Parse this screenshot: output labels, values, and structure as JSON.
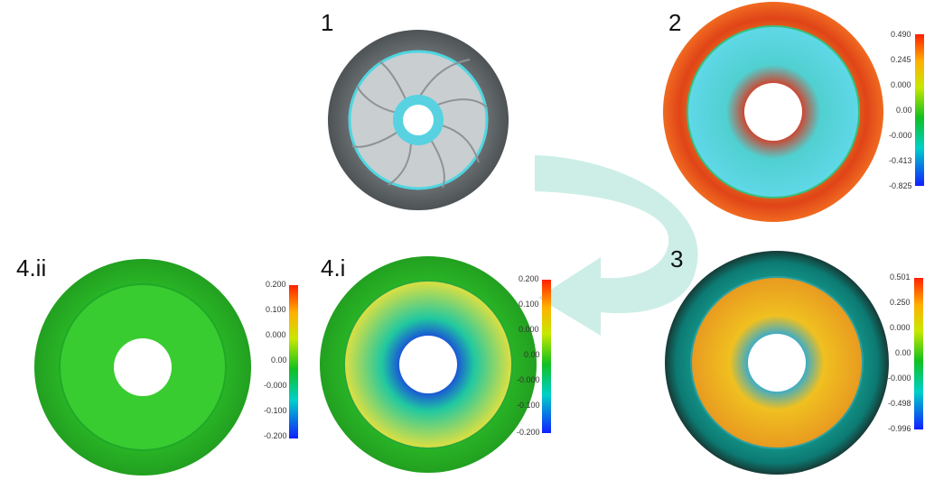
{
  "panels": [
    {
      "id": "1",
      "label": "1"
    },
    {
      "id": "2",
      "label": "2",
      "scale": [
        "0.490",
        "0.245",
        "0.000",
        "0.00",
        "-0.000",
        "-0.413",
        "-0.825"
      ]
    },
    {
      "id": "3",
      "label": "3",
      "scale": [
        "0.501",
        "0.250",
        "0.000",
        "0.00",
        "-0.000",
        "-0.498",
        "-0.996"
      ]
    },
    {
      "id": "4i",
      "label": "4.i",
      "scale": [
        "0.200",
        "0.100",
        "0.000",
        "0.00",
        "-0.000",
        "-0.100",
        "-0.200"
      ]
    },
    {
      "id": "4ii",
      "label": "4.ii",
      "scale": [
        "0.200",
        "0.100",
        "0.000",
        "0.00",
        "-0.000",
        "-0.100",
        "-0.200"
      ]
    }
  ],
  "colors": {
    "gray_model": "#6f7477",
    "cyan_edge": "#4fd6e0",
    "arrow": "#bfe9e0",
    "scale_top": "#ff2a00",
    "scale_mid": "#00c040",
    "scale_bottom": "#1a1aff"
  }
}
